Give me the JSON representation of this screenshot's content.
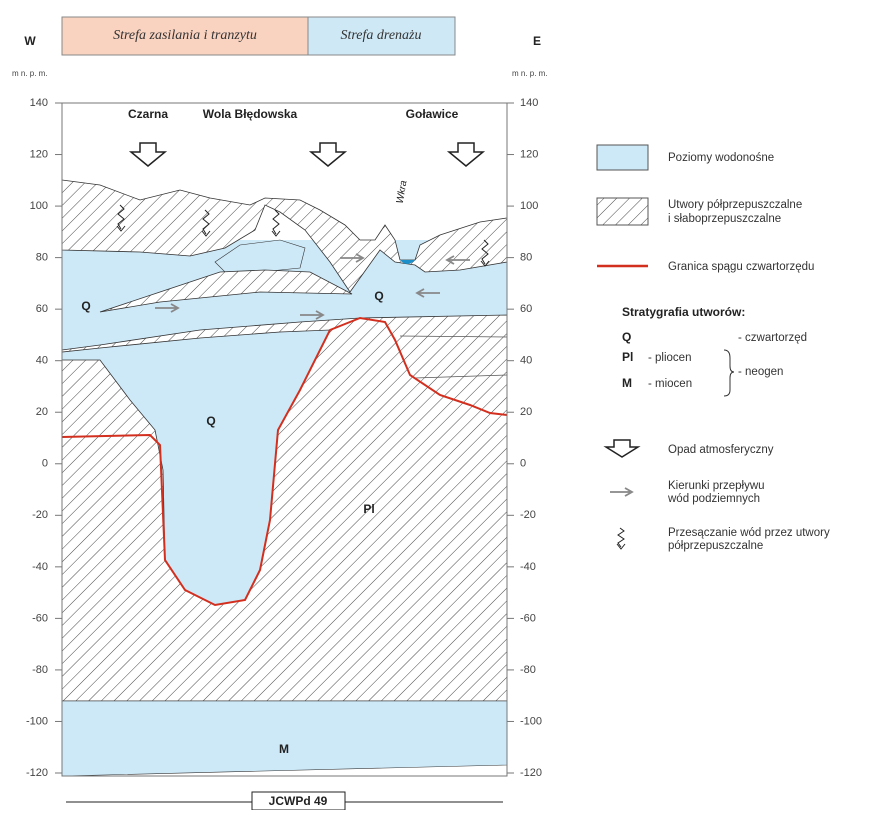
{
  "header": {
    "west": "W",
    "east": "E",
    "zones": [
      "Strefa zasilania i tranzytu",
      "Strefa drenażu"
    ]
  },
  "axis": {
    "unit": "m n. p. m.",
    "ticks": [
      140,
      120,
      100,
      80,
      60,
      40,
      20,
      0,
      -20,
      -40,
      -60,
      -80,
      -100,
      -120
    ]
  },
  "places": [
    "Czarna",
    "Wola Błędowska",
    "Goławice"
  ],
  "section_labels": {
    "q_left": "Q",
    "q_middle": "Q",
    "q_channel": "Q",
    "pl": "Pl",
    "m": "M",
    "river": "Wkra"
  },
  "unit_name": "JCWPd 49",
  "legend": {
    "aquifer": "Poziomy wodonośne",
    "aquitard": [
      "Utwory półprzepuszczalne",
      "i słaboprzepuszczalne"
    ],
    "boundary": "Granica spągu czwartorzędu",
    "stratigraphy": {
      "title": "Stratygrafia utworów:",
      "q": "Q",
      "q_name": "- czwartorzęd",
      "pl": "Pl",
      "pl_name": "- pliocen",
      "m": "M",
      "m_name": "- miocen",
      "group": "- neogen"
    },
    "precipitation": "Opad atmosferyczny",
    "flow": [
      "Kierunki przepływu",
      "wód podziemnych"
    ],
    "seepage": [
      "Przesączanie wód przez utwory",
      "półprzepuszczalne"
    ]
  }
}
